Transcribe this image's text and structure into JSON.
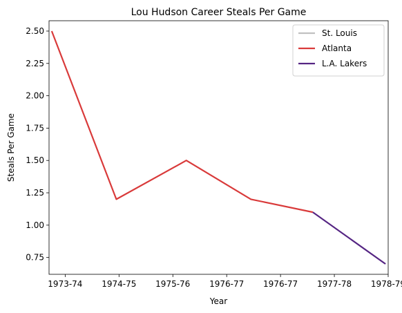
{
  "chart_data": {
    "type": "line",
    "title": "Lou Hudson Career Steals Per Game",
    "xlabel": "Year",
    "ylabel": "Steals Per Game",
    "x_ticks": [
      "1973-74",
      "1974-75",
      "1975-76",
      "1976-77",
      "1976-77",
      "1977-78",
      "1978-79"
    ],
    "xlim": [
      -0.3,
      6.0
    ],
    "ylim": [
      0.62,
      2.58
    ],
    "y_ticks": [
      0.75,
      1.0,
      1.25,
      1.5,
      1.75,
      2.0,
      2.25,
      2.5
    ],
    "y_tick_labels": [
      "0.75",
      "1.00",
      "1.25",
      "1.50",
      "1.75",
      "2.00",
      "2.25",
      "2.50"
    ],
    "grid": false,
    "legend_position": "top-right",
    "series": [
      {
        "name": "St. Louis",
        "color": "#c0c0c0",
        "x": [],
        "y": []
      },
      {
        "name": "Atlanta",
        "color": "#d93a3a",
        "x": [
          -0.25,
          0.95,
          2.25,
          3.45,
          4.6
        ],
        "y": [
          2.5,
          1.2,
          1.5,
          1.2,
          1.1
        ]
      },
      {
        "name": "L.A. Lakers",
        "color": "#552583",
        "x": [
          4.6,
          5.95
        ],
        "y": [
          1.1,
          0.7
        ]
      }
    ]
  }
}
